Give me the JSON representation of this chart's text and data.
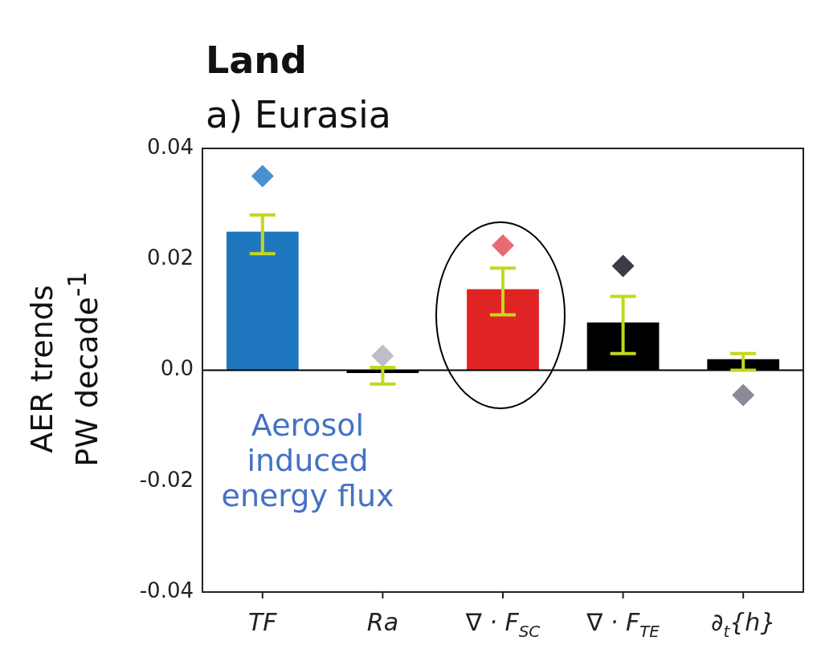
{
  "chart_data": {
    "type": "bar",
    "title": "Land",
    "subtitle": "a) Eurasia",
    "ylabel": "AER trends PW decade$^{-1}$",
    "categories": [
      "TF",
      "Ra",
      "∇ · F$_{SC}$",
      "∇ · F$_{TE}$",
      "∂$_{t}${h}"
    ],
    "series": [
      {
        "values": [
          0.025,
          -0.0005,
          0.0146,
          0.0086,
          0.002
        ],
        "colors": [
          "#1f77c0",
          "#000000",
          "#e02424",
          "#000000",
          "#000000"
        ],
        "errors": [
          [
            0.021,
            0.028
          ],
          [
            -0.0025,
            0.0005
          ],
          [
            0.01,
            0.0184
          ],
          [
            0.003,
            0.0133
          ],
          [
            0.0,
            0.003
          ]
        ]
      },
      {
        "type": "scatter",
        "x": [
          "TF",
          "Ra",
          "∇ · F$_{SC}$",
          "∇ · F$_{TE}$",
          "∂$_{t}${h}"
        ],
        "values": [
          0.035,
          0.0026,
          0.0225,
          0.0188,
          -0.0045
        ],
        "colors": [
          "#4a90d0",
          "#c0bcc8",
          "#e86a74",
          "#3c3c48",
          "#8c8a98"
        ],
        "marker": "diamond"
      }
    ],
    "ylim": [
      -0.04,
      0.04
    ],
    "yticks": [
      {
        "value": -0.04,
        "label": "-0.04"
      },
      {
        "value": -0.02,
        "label": "-0.02"
      },
      {
        "value": 0,
        "label": "0.0"
      },
      {
        "value": 0.02,
        "label": "0.02"
      },
      {
        "value": 0.04,
        "label": "0.04"
      }
    ],
    "ref_lines": [
      {
        "axis": "y",
        "value": 0,
        "color": "#000000"
      }
    ],
    "annotations": [
      "Aerosol induced energy flux"
    ],
    "grid": false,
    "legend": false
  }
}
